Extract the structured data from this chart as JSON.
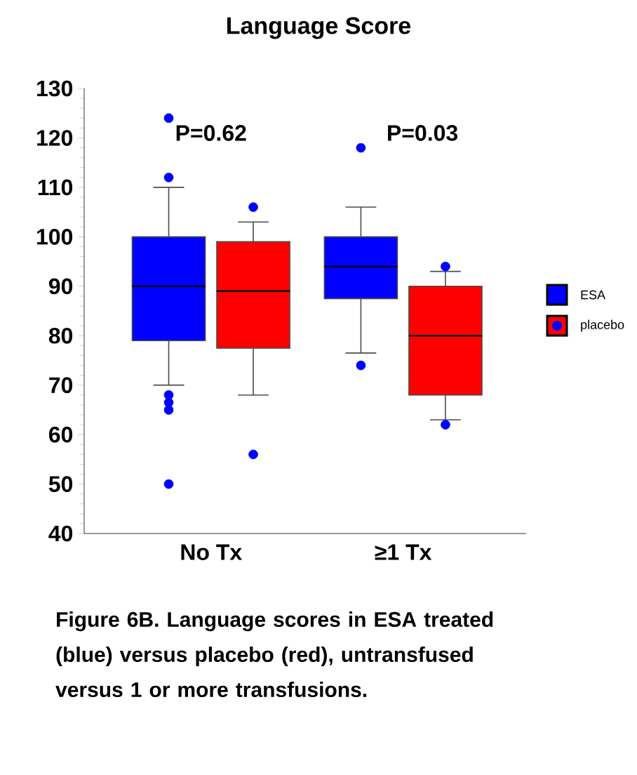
{
  "chart_data": {
    "type": "box",
    "title": "Language Score",
    "categories": [
      "No Tx",
      "≥1 Tx"
    ],
    "series": [
      {
        "name": "ESA",
        "color": "#0000ff",
        "boxes": [
          {
            "low": 70,
            "q1": 79,
            "median": 90,
            "q3": 100,
            "high": 110,
            "outliers": [
              124,
              112,
              68,
              66.5,
              65,
              50
            ]
          },
          {
            "low": 76.5,
            "q1": 87.5,
            "median": 94,
            "q3": 100,
            "high": 106,
            "outliers": [
              118,
              74
            ]
          }
        ]
      },
      {
        "name": "placebo",
        "color": "#ff0000",
        "boxes": [
          {
            "low": 68,
            "q1": 77.5,
            "median": 89,
            "q3": 99,
            "high": 103,
            "outliers": [
              106,
              56
            ]
          },
          {
            "low": 63,
            "q1": 68,
            "median": 80,
            "q3": 90,
            "high": 93,
            "outliers": [
              94,
              62
            ]
          }
        ]
      }
    ],
    "ylim": [
      40,
      130
    ],
    "yticks": [
      40,
      50,
      60,
      70,
      80,
      90,
      100,
      110,
      120,
      130
    ],
    "legend": "right",
    "annotations": [
      "P=0.62",
      "P=0.03",
      "Figure 6B. Language scores in ESA treated (blue) versus placebo (red), untransfused versus 1 or more transfusions."
    ]
  }
}
